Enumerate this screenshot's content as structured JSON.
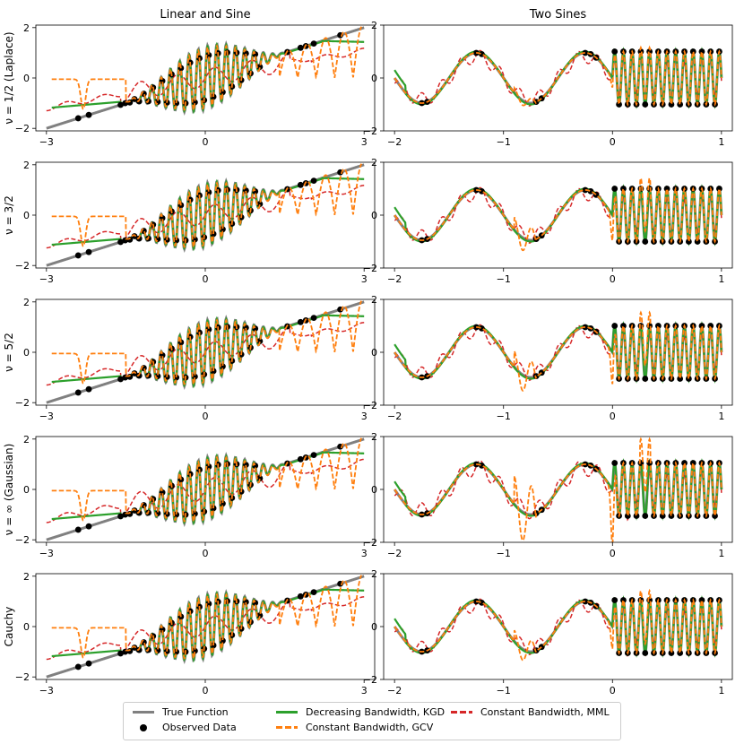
{
  "figure": {
    "col_titles": [
      "Linear and Sine",
      "Two Sines"
    ],
    "row_labels": [
      "ν = 1/2 (Laplace)",
      "ν = 3/2",
      "ν = 5/2",
      "ν = ∞ (Gaussian)",
      "Cauchy"
    ],
    "legend": [
      {
        "label": "True Function",
        "color": "#808080",
        "kind": "line",
        "dashed": false
      },
      {
        "label": "Observed Data",
        "color": "#000000",
        "kind": "marker",
        "dashed": false
      },
      {
        "label": "Decreasing Bandwidth, KGD",
        "color": "#2ca02c",
        "kind": "line",
        "dashed": false
      },
      {
        "label": "Constant Bandwidth, GCV",
        "color": "#ff7f0e",
        "kind": "line",
        "dashed": true
      },
      {
        "label": "Constant Bandwidth, MML",
        "color": "#d62728",
        "kind": "line",
        "dashed": true
      }
    ]
  },
  "chart_data": [
    {
      "type": "line",
      "panel": "Linear and Sine",
      "row": "ν = 1/2 (Laplace)",
      "xlim": [
        -3.2,
        3.2
      ],
      "ylim": [
        -2.1,
        2.1
      ],
      "xticks": [
        "−3",
        "0",
        "3"
      ],
      "yticks": [
        "−2",
        "0",
        "2"
      ],
      "gcv_spike": 0.0,
      "mml_amp": 0.35
    },
    {
      "type": "line",
      "panel": "Two Sines",
      "row": "ν = 1/2 (Laplace)",
      "xlim": [
        -2.1,
        1.1
      ],
      "ylim": [
        -2,
        2
      ],
      "xticks": [
        "−2",
        "−1",
        "0",
        "1"
      ],
      "yticks": [
        "−2",
        "0",
        "2"
      ],
      "gcv_spike": 0.3,
      "mml_amp": 0.25
    },
    {
      "type": "line",
      "panel": "Linear and Sine",
      "row": "ν = 3/2",
      "xlim": [
        -3.2,
        3.2
      ],
      "ylim": [
        -2.1,
        2.1
      ],
      "xticks": [
        "−3",
        "0",
        "3"
      ],
      "yticks": [
        "−2",
        "0",
        "2"
      ],
      "gcv_spike": 0.0,
      "mml_amp": 0.35
    },
    {
      "type": "line",
      "panel": "Two Sines",
      "row": "ν = 3/2",
      "xlim": [
        -2.1,
        1.1
      ],
      "ylim": [
        -2,
        2
      ],
      "xticks": [
        "−2",
        "−1",
        "0",
        "1"
      ],
      "yticks": [
        "−2",
        "0",
        "2"
      ],
      "gcv_spike": 0.8,
      "mml_amp": 0.25
    },
    {
      "type": "line",
      "panel": "Linear and Sine",
      "row": "ν = 5/2",
      "xlim": [
        -3.2,
        3.2
      ],
      "ylim": [
        -2.1,
        2.1
      ],
      "xticks": [
        "−3",
        "0",
        "3"
      ],
      "yticks": [
        "−2",
        "0",
        "2"
      ],
      "gcv_spike": 0.0,
      "mml_amp": 0.35
    },
    {
      "type": "line",
      "panel": "Two Sines",
      "row": "ν = 5/2",
      "xlim": [
        -2.1,
        1.1
      ],
      "ylim": [
        -2,
        2
      ],
      "xticks": [
        "−2",
        "−1",
        "0",
        "1"
      ],
      "yticks": [
        "−2",
        "0",
        "2"
      ],
      "gcv_spike": 1.0,
      "mml_amp": 0.25
    },
    {
      "type": "line",
      "panel": "Linear and Sine",
      "row": "ν = ∞ (Gaussian)",
      "xlim": [
        -3.2,
        3.2
      ],
      "ylim": [
        -2.1,
        2.1
      ],
      "xticks": [
        "−3",
        "0",
        "3"
      ],
      "yticks": [
        "−2",
        "0",
        "2"
      ],
      "gcv_spike": 0.0,
      "mml_amp": 0.4
    },
    {
      "type": "line",
      "panel": "Two Sines",
      "row": "ν = ∞ (Gaussian)",
      "xlim": [
        -2.1,
        1.1
      ],
      "ylim": [
        -2,
        2
      ],
      "xticks": [
        "−2",
        "−1",
        "0",
        "1"
      ],
      "yticks": [
        "−2",
        "0",
        "2"
      ],
      "gcv_spike": 1.8,
      "mml_amp": 0.3
    },
    {
      "type": "line",
      "panel": "Linear and Sine",
      "row": "Cauchy",
      "xlim": [
        -3.2,
        3.2
      ],
      "ylim": [
        -2.1,
        2.1
      ],
      "xticks": [
        "−3",
        "0",
        "3"
      ],
      "yticks": [
        "−2",
        "0",
        "2"
      ],
      "gcv_spike": 0.0,
      "mml_amp": 0.35
    },
    {
      "type": "line",
      "panel": "Two Sines",
      "row": "Cauchy",
      "xlim": [
        -2.1,
        1.1
      ],
      "ylim": [
        -2,
        2
      ],
      "xticks": [
        "−2",
        "−1",
        "0",
        "1"
      ],
      "yticks": [
        "−2",
        "0",
        "2"
      ],
      "gcv_spike": 0.7,
      "mml_amp": 0.25
    }
  ]
}
